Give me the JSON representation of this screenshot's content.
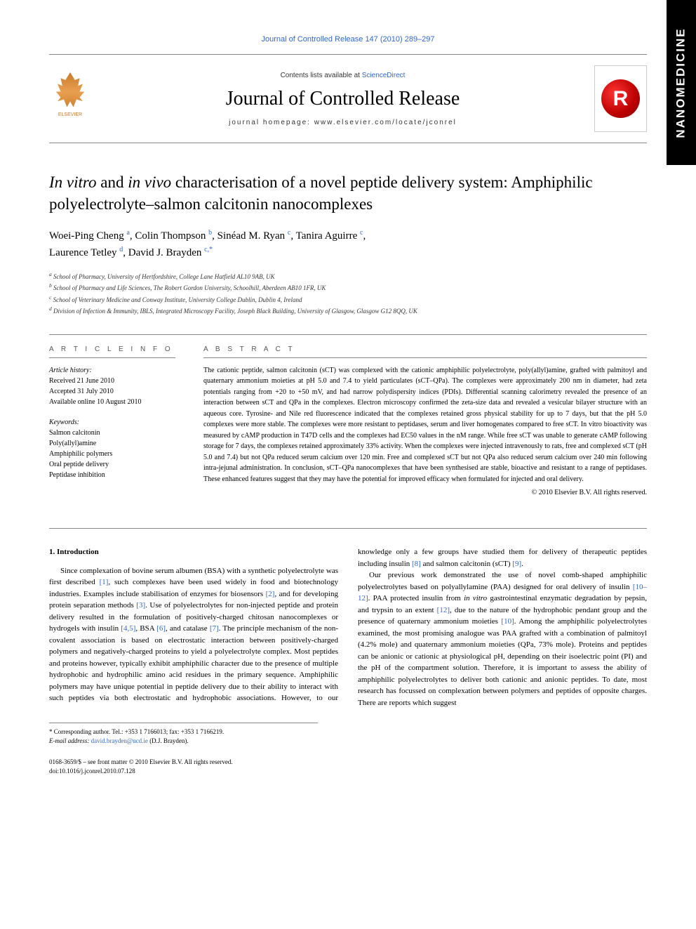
{
  "sideTab": "NANOMEDICINE",
  "headerLink": "Journal of Controlled Release 147 (2010) 289–297",
  "masthead": {
    "elsevierLabel": "ELSEVIER",
    "contentsPrefix": "Contents lists available at ",
    "contentsLink": "ScienceDirect",
    "journalName": "Journal of Controlled Release",
    "homepageLabel": "journal homepage: www.elsevier.com/locate/jconrel",
    "logoLetter": "R"
  },
  "title": {
    "prefix1": "In vitro",
    "mid1": " and ",
    "prefix2": "in vivo",
    "rest": " characterisation of a novel peptide delivery system: Amphiphilic polyelectrolyte–salmon calcitonin nanocomplexes"
  },
  "authors": [
    {
      "name": "Woei-Ping Cheng",
      "aff": "a"
    },
    {
      "name": "Colin Thompson",
      "aff": "b"
    },
    {
      "name": "Sinéad M. Ryan",
      "aff": "c"
    },
    {
      "name": "Tanira Aguirre",
      "aff": "c"
    },
    {
      "name": "Laurence Tetley",
      "aff": "d"
    },
    {
      "name": "David J. Brayden",
      "aff": "c,*"
    }
  ],
  "affiliations": [
    {
      "key": "a",
      "text": "School of Pharmacy, University of Hertfordshire, College Lane Hatfield AL10 9AB, UK"
    },
    {
      "key": "b",
      "text": "School of Pharmacy and Life Sciences, The Robert Gordon University, Schoolhill, Aberdeen AB10 1FR, UK"
    },
    {
      "key": "c",
      "text": "School of Veterinary Medicine and Conway Institute, University College Dublin, Dublin 4, Ireland"
    },
    {
      "key": "d",
      "text": "Division of Infection & Immunity, IBLS, Integrated Microscopy Facility, Joseph Black Building, University of Glasgow, Glasgow G12 8QQ, UK"
    }
  ],
  "info": {
    "heading": "A R T I C L E   I N F O",
    "historyLabel": "Article history:",
    "received": "Received 21 June 2010",
    "accepted": "Accepted 31 July 2010",
    "online": "Available online 10 August 2010",
    "keywordsLabel": "Keywords:",
    "keywords": [
      "Salmon calcitonin",
      "Poly(allyl)amine",
      "Amphiphilic polymers",
      "Oral peptide delivery",
      "Peptidase inhibition"
    ]
  },
  "abstract": {
    "heading": "A B S T R A C T",
    "text": "The cationic peptide, salmon calcitonin (sCT) was complexed with the cationic amphiphilic polyelectrolyte, poly(allyl)amine, grafted with palmitoyl and quaternary ammonium moieties at pH 5.0 and 7.4 to yield particulates (sCT–QPa). The complexes were approximately 200 nm in diameter, had zeta potentials ranging from +20 to +50 mV, and had narrow polydispersity indices (PDIs). Differential scanning calorimetry revealed the presence of an interaction between sCT and QPa in the complexes. Electron microscopy confirmed the zeta-size data and revealed a vesicular bilayer structure with an aqueous core. Tyrosine- and Nile red fluorescence indicated that the complexes retained gross physical stability for up to 7 days, but that the pH 5.0 complexes were more stable. The complexes were more resistant to peptidases, serum and liver homogenates compared to free sCT. In vitro bioactivity was measured by cAMP production in T47D cells and the complexes had EC50 values in the nM range. While free sCT was unable to generate cAMP following storage for 7 days, the complexes retained approximately 33% activity. When the complexes were injected intravenously to rats, free and complexed sCT (pH 5.0 and 7.4) but not QPa reduced serum calcium over 120 min. Free and complexed sCT but not QPa also reduced serum calcium over 240 min following intra-jejunal administration. In conclusion, sCT–QPa nanocomplexes that have been synthesised are stable, bioactive and resistant to a range of peptidases. These enhanced features suggest that they may have the potential for improved efficacy when formulated for injected and oral delivery.",
    "copyright": "© 2010 Elsevier B.V. All rights reserved."
  },
  "body": {
    "sectionHeading": "1. Introduction",
    "para1a": "Since complexation of bovine serum albumen (BSA) with a synthetic polyelectrolyte was first described ",
    "ref1": "[1]",
    "para1b": ", such complexes have been used widely in food and biotechnology industries. Examples include stabilisation of enzymes for biosensors ",
    "ref2": "[2]",
    "para1c": ", and for developing protein separation methods ",
    "ref3": "[3]",
    "para1d": ". Use of polyelectrolytes for non-injected peptide and protein delivery resulted in the formulation of positively-charged chitosan nanocomplexes or hydrogels with insulin ",
    "ref45": "[4,5]",
    "para1e": ", BSA ",
    "ref6": "[6]",
    "para1f": ", and catalase ",
    "ref7": "[7]",
    "para1g": ". The principle mechanism of the non-covalent association is based on electrostatic interaction between positively-charged polymers and negatively-charged proteins to yield a polyelectrolyte complex. Most peptides and proteins however, typically exhibit amphiphilic character due to the presence of multiple hydrophobic and hydrophilic amino acid residues in the primary sequence. Amphiphilic polymers may have unique potential in peptide delivery due to their ability to interact with such peptides via both electrostatic and hydrophobic associations. However, to our knowledge only a few groups have studied them for delivery of therapeutic peptides including insulin ",
    "ref8": "[8]",
    "para1h": " and salmon calcitonin (sCT) ",
    "ref9": "[9]",
    "para1i": ".",
    "para2a": "Our previous work demonstrated the use of novel comb-shaped amphiphilic polyelectrolytes based on polyallylamine (PAA) designed for oral delivery of insulin ",
    "ref1012": "[10–12]",
    "para2b": ". PAA protected insulin from ",
    "para2bi": "in vitro",
    "para2c": " gastrointestinal enzymatic degradation by pepsin, and trypsin to an extent ",
    "ref12": "[12]",
    "para2d": ", due to the nature of the hydrophobic pendant group and the presence of quaternary ammonium moieties ",
    "ref10": "[10]",
    "para2e": ". Among the amphiphilic polyelectrolytes examined, the most promising analogue was PAA grafted with a combination of palmitoyl (4.2% mole) and quaternary ammonium moieties (QPa, 73% mole). Proteins and peptides can be anionic or cationic at physiological pH, depending on their isoelectric point (PI) and the pH of the compartment solution. Therefore, it is important to assess the ability of amphiphilic polyelectrolytes to deliver both cationic and anionic peptides. To date, most research has focussed on complexation between polymers and peptides of opposite charges. There are reports which suggest"
  },
  "footnote": {
    "corrLabel": "* Corresponding author. Tel.: +353 1 7166013; fax: +353 1 7166219.",
    "emailLabel": "E-mail address:",
    "email": "david.brayden@ucd.ie",
    "emailName": "(D.J. Brayden)."
  },
  "bottom": {
    "issn": "0168-3659/$ – see front matter © 2010 Elsevier B.V. All rights reserved.",
    "doi": "doi:10.1016/j.jconrel.2010.07.128"
  }
}
